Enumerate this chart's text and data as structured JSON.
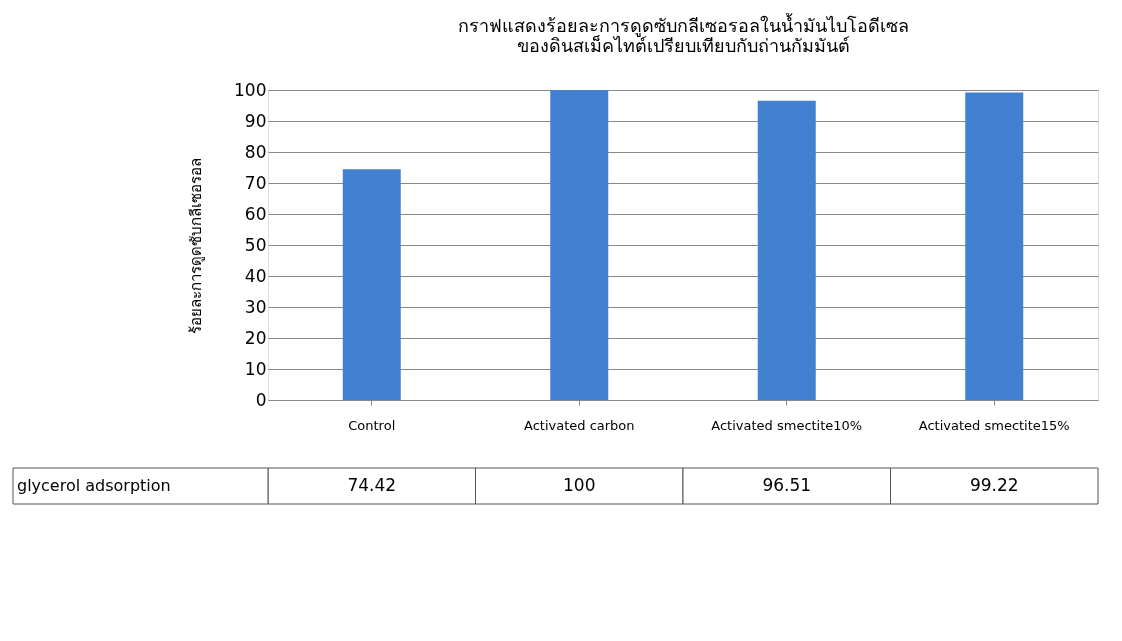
{
  "chart_data": {
    "type": "bar",
    "title": [
      "กราฟแสดงร้อยละการดูดซับกลีเซอรอลในน้ำมันไบโอดีเซล",
      "ของดินสเม็คไทต์เปรียบเทียบกับถ่านกัมมันต์"
    ],
    "ylabel": "ร้อยละการดูดซับกลีเซอรอล",
    "categories": [
      "Control",
      "Activated carbon",
      "Activated smectite10%",
      "Activated smectite15%"
    ],
    "series": [
      {
        "name": "glycerol adsorption",
        "color": "#4281d1",
        "values": [
          74.42,
          100,
          96.51,
          99.22
        ]
      }
    ],
    "ylim": [
      0,
      100
    ],
    "yticks": [
      0,
      10,
      20,
      30,
      40,
      50,
      60,
      70,
      80,
      90,
      100
    ],
    "grid": "y",
    "data_labels": true
  }
}
